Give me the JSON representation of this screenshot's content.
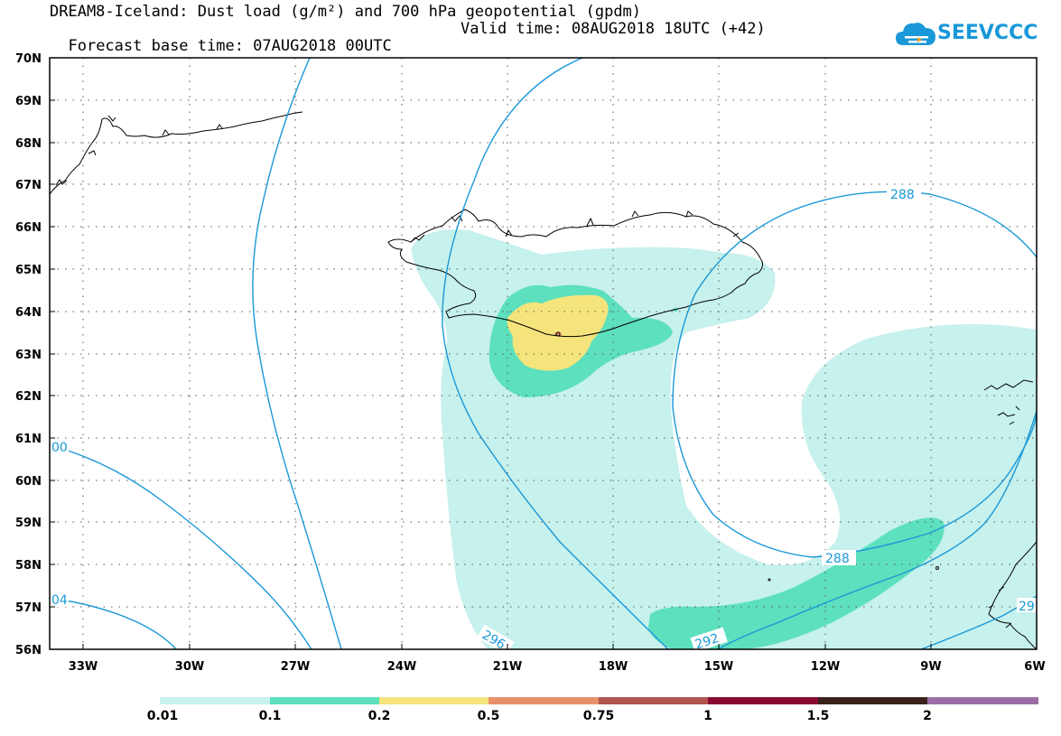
{
  "header": {
    "title_line1": "DREAM8-Iceland: Dust load (g/m²) and 700 hPa geopotential (gpdm)",
    "forecast_base": "Forecast base time: 07AUG2018 00UTC",
    "valid_time": "Valid time: 08AUG2018 18UTC (+42)"
  },
  "logo": {
    "text": "SEEVCCC",
    "icon": "cloud-icon",
    "color": "#1a98d8"
  },
  "map": {
    "lat_labels": [
      "70N",
      "69N",
      "68N",
      "67N",
      "66N",
      "65N",
      "64N",
      "63N",
      "62N",
      "61N",
      "60N",
      "59N",
      "58N",
      "57N",
      "56N"
    ],
    "lon_labels": [
      "33W",
      "30W",
      "27W",
      "24W",
      "21W",
      "18W",
      "15W",
      "12W",
      "9W",
      "6W"
    ],
    "contour_color": "#1a98d8",
    "contour_labels": [
      "288",
      "288",
      "292",
      "296",
      "00",
      "04",
      "29"
    ],
    "dust_colors": {
      "level_001": "#c6f1ec",
      "level_01": "#5de0bd",
      "level_02": "#f5e47c"
    }
  },
  "colorbar": {
    "labels": [
      "0.01",
      "0.1",
      "0.2",
      "0.5",
      "0.75",
      "1",
      "1.5",
      "2"
    ],
    "colors": [
      "#c6f1ec",
      "#5de0bd",
      "#f5e47c",
      "#e8906a",
      "#b2554f",
      "#8a0b32",
      "#3a221c",
      "#9a6ea4"
    ]
  }
}
